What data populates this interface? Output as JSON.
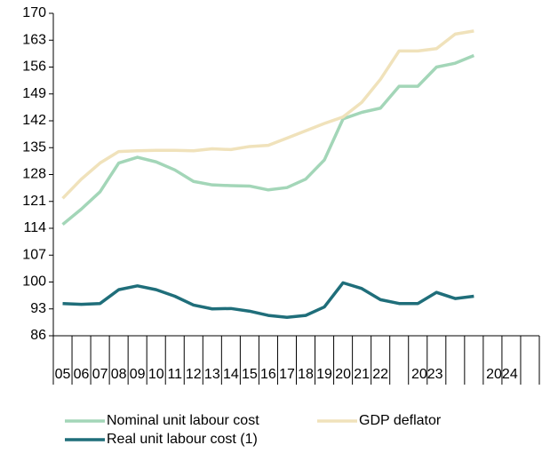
{
  "chart_data": {
    "type": "line",
    "categories": [
      "05",
      "06",
      "07",
      "08",
      "09",
      "10",
      "11",
      "12",
      "13",
      "14",
      "15",
      "16",
      "17",
      "18",
      "19",
      "20",
      "21",
      "22",
      null,
      null,
      null,
      null,
      null,
      null,
      null,
      null
    ],
    "year_groups": [
      "2023",
      "2024"
    ],
    "series": [
      {
        "name": "Nominal unit labour cost",
        "color": "#a3d6b8",
        "values": [
          115,
          119,
          123.5,
          131,
          132.5,
          131.3,
          129.2,
          126.2,
          125.3,
          125.1,
          125,
          124,
          124.6,
          126.8,
          131.8,
          142.5,
          144.2,
          145.3,
          151,
          151,
          156,
          157,
          159,
          null,
          null,
          null
        ]
      },
      {
        "name": "GDP deflator",
        "color": "#f0e2bb",
        "values": [
          121.8,
          126.8,
          131,
          134,
          134.2,
          134.3,
          134.3,
          134.2,
          134.7,
          134.5,
          135.3,
          135.6,
          137.5,
          139.4,
          141.3,
          143,
          146.8,
          152.8,
          160.2,
          160.2,
          160.8,
          164.6,
          165.4,
          null,
          null,
          null
        ]
      },
      {
        "name": "Real unit labour cost (1)",
        "color": "#1f6e7a",
        "values": [
          94.4,
          94.2,
          94.4,
          98,
          99,
          98,
          96.3,
          94,
          93,
          93.1,
          92.4,
          91.3,
          90.8,
          91.3,
          93.5,
          99.8,
          98.3,
          95.4,
          94.4,
          94.4,
          97.3,
          95.7,
          96.3,
          null,
          null,
          null
        ]
      }
    ],
    "ylim": [
      86,
      170
    ],
    "yticks": [
      86,
      93,
      100,
      107,
      114,
      121,
      128,
      135,
      142,
      149,
      156,
      163,
      170
    ]
  }
}
